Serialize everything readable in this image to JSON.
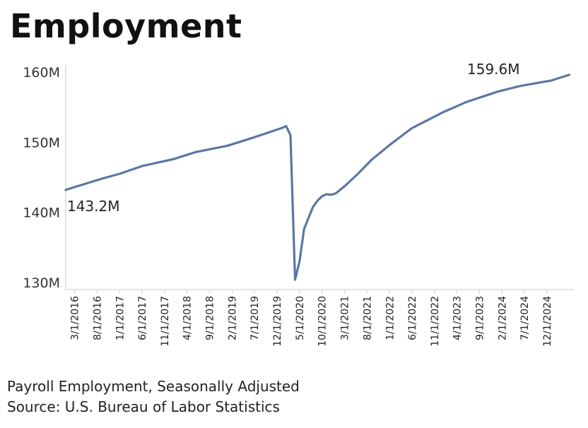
{
  "title": "Employment",
  "notes": {
    "line1": "Payroll Employment, Seasonally Adjusted",
    "line2": "Source: U.S. Bureau of Labor Statistics"
  },
  "colors": {
    "line": "#5b77a2",
    "axis": "#c8c8c8",
    "text": "#333333"
  },
  "chart_data": {
    "type": "line",
    "title": "Employment",
    "xlabel": "",
    "ylabel": "",
    "ylim": [
      129,
      161
    ],
    "y_ticks": [
      130,
      140,
      150,
      160
    ],
    "y_tick_labels": [
      "130M",
      "140M",
      "150M",
      "160M"
    ],
    "x_tick_labels": [
      "3/1/2016",
      "8/1/2016",
      "1/1/2017",
      "6/1/2017",
      "11/1/2017",
      "4/1/2018",
      "9/1/2018",
      "2/1/2019",
      "7/1/2019",
      "12/1/2019",
      "5/1/2020",
      "10/1/2020",
      "3/1/2021",
      "8/1/2021",
      "1/1/2022",
      "6/1/2022",
      "11/1/2022",
      "4/1/2023",
      "9/1/2023",
      "2/1/2024",
      "7/1/2024",
      "12/1/2024"
    ],
    "x_range": [
      "1/1/2016",
      "6/1/2025"
    ],
    "grid": false,
    "annotations": [
      {
        "date": "1/1/2016",
        "value": 143.2,
        "text": "143.2M"
      },
      {
        "date": "5/1/2025",
        "value": 159.6,
        "text": "159.6M"
      }
    ],
    "series": [
      {
        "values": [
          [
            "1/1/2016",
            143.2
          ],
          [
            "3/1/2016",
            143.6
          ],
          [
            "6/1/2016",
            144.2
          ],
          [
            "9/1/2016",
            144.8
          ],
          [
            "1/1/2017",
            145.5
          ],
          [
            "6/1/2017",
            146.6
          ],
          [
            "1/1/2018",
            147.6
          ],
          [
            "6/1/2018",
            148.6
          ],
          [
            "1/1/2019",
            149.5
          ],
          [
            "6/1/2019",
            150.5
          ],
          [
            "1/1/2020",
            152.0
          ],
          [
            "2/1/2020",
            152.3
          ],
          [
            "3/1/2020",
            151.0
          ],
          [
            "4/1/2020",
            130.4
          ],
          [
            "5/1/2020",
            133.0
          ],
          [
            "6/1/2020",
            137.6
          ],
          [
            "7/1/2020",
            139.2
          ],
          [
            "8/1/2020",
            140.8
          ],
          [
            "9/1/2020",
            141.7
          ],
          [
            "10/1/2020",
            142.3
          ],
          [
            "11/1/2020",
            142.6
          ],
          [
            "12/1/2020",
            142.5
          ],
          [
            "1/1/2021",
            142.7
          ],
          [
            "3/1/2021",
            143.7
          ],
          [
            "6/1/2021",
            145.5
          ],
          [
            "9/1/2021",
            147.5
          ],
          [
            "1/1/2022",
            149.6
          ],
          [
            "6/1/2022",
            152.0
          ],
          [
            "1/1/2023",
            154.3
          ],
          [
            "6/1/2023",
            155.7
          ],
          [
            "1/1/2024",
            157.2
          ],
          [
            "6/1/2024",
            158.0
          ],
          [
            "1/1/2025",
            158.8
          ],
          [
            "5/1/2025",
            159.6
          ]
        ]
      }
    ]
  }
}
